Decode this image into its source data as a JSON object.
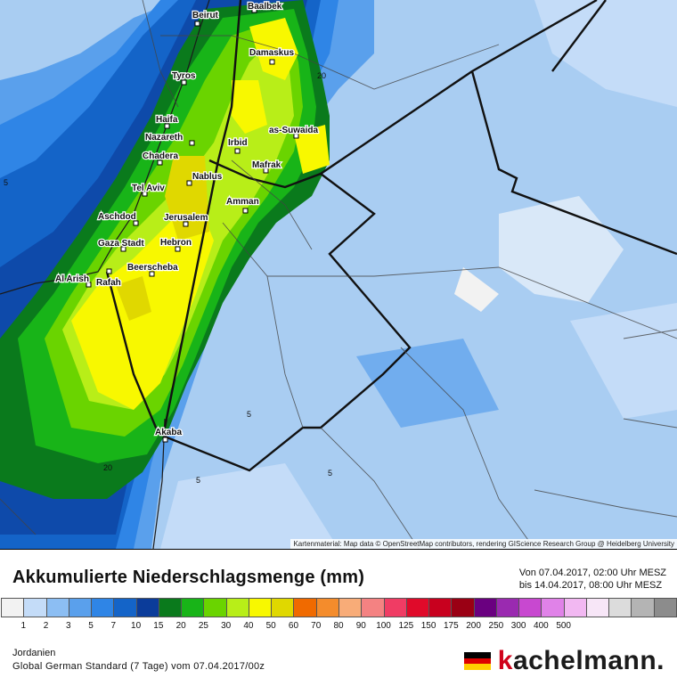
{
  "map": {
    "attribution": "Kartenmaterial: Map data © OpenStreetMap contributors, rendering GIScience Research Group @ Heidelberg University",
    "cities": [
      {
        "name": "Beirut"
      },
      {
        "name": "Baalbek"
      },
      {
        "name": "Damaskus"
      },
      {
        "name": "Tyros"
      },
      {
        "name": "Haifa"
      },
      {
        "name": "Nazareth"
      },
      {
        "name": "Irbid"
      },
      {
        "name": "as-Suwaida"
      },
      {
        "name": "Chadera"
      },
      {
        "name": "Mafrak"
      },
      {
        "name": "Nablus"
      },
      {
        "name": "Tel Aviv"
      },
      {
        "name": "Amman"
      },
      {
        "name": "Aschdod"
      },
      {
        "name": "Jerusalem"
      },
      {
        "name": "Gaza Stadt"
      },
      {
        "name": "Hebron"
      },
      {
        "name": "Al Arish"
      },
      {
        "name": "Rafah"
      },
      {
        "name": "Beerscheba"
      },
      {
        "name": "Akaba"
      }
    ],
    "contour_labels": [
      "5",
      "20",
      "5",
      "5",
      "20",
      "5"
    ]
  },
  "footer": {
    "title": "Akkumulierte Niederschlagsmenge (mm)",
    "period_from": "Von 07.04.2017, 02:00 Uhr MESZ",
    "period_to": "bis 14.04.2017, 08:00 Uhr MESZ",
    "region": "Jordanien",
    "model": "Global German Standard (7 Tage) vom 07.04.2017/00z",
    "brand_k": "k",
    "brand_rest": "achelmann."
  },
  "legend": {
    "colors": [
      "#f2f2f2",
      "#c4dcf8",
      "#8cbef3",
      "#5aa0ec",
      "#2f85e6",
      "#1464c8",
      "#0b3c9a",
      "#0a7a1c",
      "#18b418",
      "#6ad400",
      "#b8ee18",
      "#f8f800",
      "#e0d800",
      "#f06a00",
      "#f48c2c",
      "#f8ac78",
      "#f48282",
      "#f03c64",
      "#e00a2a",
      "#c8001e",
      "#9a0014",
      "#6a0080",
      "#9a2ab0",
      "#c848d0",
      "#e082e8",
      "#f2b8f2",
      "#f7e6f7",
      "#dcdcdc",
      "#b4b4b4",
      "#8c8c8c"
    ],
    "values": [
      "1",
      "2",
      "3",
      "5",
      "7",
      "10",
      "15",
      "20",
      "25",
      "30",
      "40",
      "50",
      "60",
      "70",
      "80",
      "90",
      "100",
      "125",
      "150",
      "175",
      "200",
      "250",
      "300",
      "400",
      "500"
    ]
  },
  "colors": {
    "flag_black": "#000000",
    "flag_red": "#dd0000",
    "flag_gold": "#ffce00"
  }
}
